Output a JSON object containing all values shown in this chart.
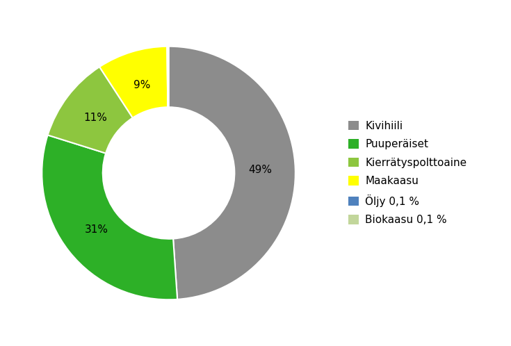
{
  "labels": [
    "Kivihiili",
    "Puuperäiset",
    "Kierrätyspolttoaine",
    "Maakaasu",
    "Öljy 0,1 %",
    "Biokaasu 0,1 %"
  ],
  "values": [
    49,
    31,
    11,
    9,
    0.1,
    0.1
  ],
  "colors": [
    "#8c8c8c",
    "#2db027",
    "#8dc63f",
    "#ffff00",
    "#4f81bd",
    "#c2d69b"
  ],
  "pct_labels": [
    "49%",
    "31%",
    "11%",
    "9%",
    "",
    ""
  ],
  "background_color": "#ffffff",
  "legend_fontsize": 11,
  "label_fontsize": 11,
  "donut_width": 0.48
}
